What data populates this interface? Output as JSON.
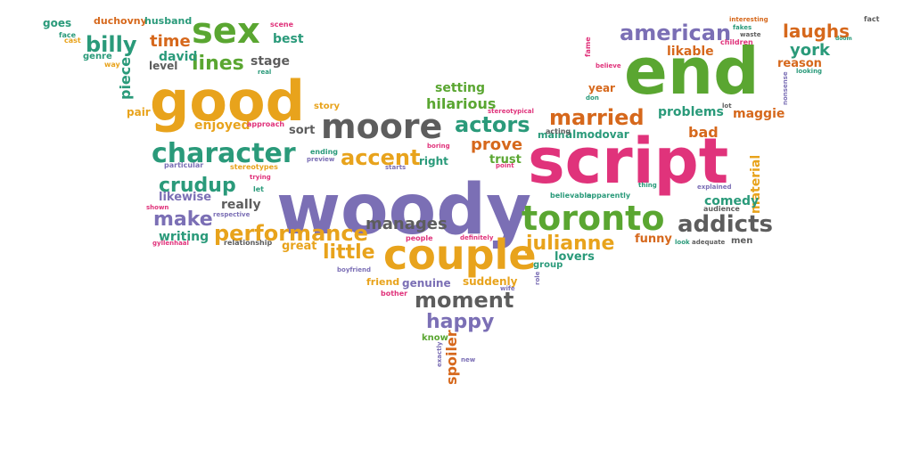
{
  "colors": {
    "purple": "#7b6fb5",
    "orange": "#e8a31c",
    "green": "#5aa631",
    "pink": "#e0337b",
    "teal": "#2a9a7a",
    "burnt": "#d6681c",
    "gray": "#5d5d5d",
    "background": "#ffffff"
  },
  "words": [
    {
      "text": "woody",
      "color": "purple"
    },
    {
      "text": "script",
      "color": "pink"
    },
    {
      "text": "end",
      "color": "green"
    },
    {
      "text": "good",
      "color": "orange"
    },
    {
      "text": "couple",
      "color": "orange"
    },
    {
      "text": "moore",
      "color": "gray"
    },
    {
      "text": "toronto",
      "color": "green"
    },
    {
      "text": "sex",
      "color": "green"
    },
    {
      "text": "character",
      "color": "teal"
    },
    {
      "text": "performance",
      "color": "orange"
    },
    {
      "text": "addicts",
      "color": "gray"
    },
    {
      "text": "american",
      "color": "purple"
    },
    {
      "text": "married",
      "color": "burnt"
    },
    {
      "text": "actors",
      "color": "teal"
    },
    {
      "text": "billy",
      "color": "teal"
    },
    {
      "text": "julianne",
      "color": "orange"
    },
    {
      "text": "accent",
      "color": "orange"
    },
    {
      "text": "moment",
      "color": "gray"
    },
    {
      "text": "happy",
      "color": "purple"
    },
    {
      "text": "laughs",
      "color": "burnt"
    },
    {
      "text": "crudup",
      "color": "teal"
    },
    {
      "text": "little",
      "color": "orange"
    },
    {
      "text": "lines",
      "color": "green"
    },
    {
      "text": "time",
      "color": "burnt"
    },
    {
      "text": "make",
      "color": "purple"
    },
    {
      "text": "york",
      "color": "teal"
    },
    {
      "text": "manages",
      "color": "gray"
    },
    {
      "text": "prove",
      "color": "burnt"
    },
    {
      "text": "hilarious",
      "color": "green"
    },
    {
      "text": "bad",
      "color": "burnt"
    },
    {
      "text": "likable",
      "color": "burnt"
    },
    {
      "text": "problems",
      "color": "teal"
    },
    {
      "text": "maggie",
      "color": "burnt"
    },
    {
      "text": "reason",
      "color": "burnt"
    },
    {
      "text": "material",
      "color": "orange"
    },
    {
      "text": "comedy",
      "color": "teal"
    },
    {
      "text": "funny",
      "color": "burnt"
    },
    {
      "text": "lovers",
      "color": "teal"
    },
    {
      "text": "great",
      "color": "orange"
    },
    {
      "text": "writing",
      "color": "teal"
    },
    {
      "text": "really",
      "color": "gray"
    },
    {
      "text": "likewise",
      "color": "purple"
    },
    {
      "text": "enjoyed",
      "color": "orange"
    },
    {
      "text": "piece",
      "color": "teal"
    },
    {
      "text": "david",
      "color": "teal"
    },
    {
      "text": "stage",
      "color": "gray"
    },
    {
      "text": "best",
      "color": "teal"
    },
    {
      "text": "year",
      "color": "burnt"
    },
    {
      "text": "setting",
      "color": "green"
    },
    {
      "text": "trust",
      "color": "green"
    },
    {
      "text": "almodovar",
      "color": "teal"
    },
    {
      "text": "genuine",
      "color": "purple"
    },
    {
      "text": "suddenly",
      "color": "orange"
    },
    {
      "text": "friend",
      "color": "orange"
    },
    {
      "text": "spoiler",
      "color": "burnt"
    },
    {
      "text": "sort",
      "color": "gray"
    },
    {
      "text": "right",
      "color": "teal"
    },
    {
      "text": "goes",
      "color": "teal"
    },
    {
      "text": "duchovny",
      "color": "burnt"
    },
    {
      "text": "husband",
      "color": "teal"
    },
    {
      "text": "level",
      "color": "gray"
    },
    {
      "text": "genre",
      "color": "teal"
    },
    {
      "text": "pair",
      "color": "orange"
    },
    {
      "text": "story",
      "color": "orange"
    },
    {
      "text": "main",
      "color": "teal"
    },
    {
      "text": "group",
      "color": "teal"
    },
    {
      "text": "men",
      "color": "gray"
    },
    {
      "text": "know",
      "color": "green"
    },
    {
      "text": "scene",
      "color": "pink"
    },
    {
      "text": "face",
      "color": "teal"
    },
    {
      "text": "cast",
      "color": "orange"
    },
    {
      "text": "way",
      "color": "orange"
    },
    {
      "text": "real",
      "color": "teal"
    },
    {
      "text": "approach",
      "color": "pink"
    },
    {
      "text": "ending",
      "color": "teal"
    },
    {
      "text": "preview",
      "color": "purple"
    },
    {
      "text": "particular",
      "color": "purple"
    },
    {
      "text": "stereotypes",
      "color": "orange"
    },
    {
      "text": "trying",
      "color": "pink"
    },
    {
      "text": "let",
      "color": "teal"
    },
    {
      "text": "shown",
      "color": "pink"
    },
    {
      "text": "respective",
      "color": "purple"
    },
    {
      "text": "gyllenhaal",
      "color": "pink"
    },
    {
      "text": "relationship",
      "color": "gray"
    },
    {
      "text": "boring",
      "color": "pink"
    },
    {
      "text": "starts",
      "color": "purple"
    },
    {
      "text": "people",
      "color": "pink"
    },
    {
      "text": "definitely",
      "color": "pink"
    },
    {
      "text": "boyfriend",
      "color": "purple"
    },
    {
      "text": "bother",
      "color": "pink"
    },
    {
      "text": "exactly",
      "color": "purple"
    },
    {
      "text": "new",
      "color": "purple"
    },
    {
      "text": "wife",
      "color": "purple"
    },
    {
      "text": "role",
      "color": "purple"
    },
    {
      "text": "point",
      "color": "pink"
    },
    {
      "text": "stereotypical",
      "color": "pink"
    },
    {
      "text": "acting",
      "color": "gray"
    },
    {
      "text": "believable",
      "color": "teal"
    },
    {
      "text": "apparently",
      "color": "teal"
    },
    {
      "text": "thing",
      "color": "teal"
    },
    {
      "text": "explained",
      "color": "purple"
    },
    {
      "text": "audience",
      "color": "gray"
    },
    {
      "text": "look",
      "color": "teal"
    },
    {
      "text": "adequate",
      "color": "gray"
    },
    {
      "text": "don",
      "color": "teal"
    },
    {
      "text": "believe",
      "color": "pink"
    },
    {
      "text": "lot",
      "color": "gray"
    },
    {
      "text": "fame",
      "color": "pink"
    },
    {
      "text": "interesting",
      "color": "burnt"
    },
    {
      "text": "fakes",
      "color": "teal"
    },
    {
      "text": "waste",
      "color": "gray"
    },
    {
      "text": "children",
      "color": "pink"
    },
    {
      "text": "nonsense",
      "color": "purple"
    },
    {
      "text": "looking",
      "color": "teal"
    },
    {
      "text": "fact",
      "color": "gray"
    },
    {
      "text": "doom",
      "color": "teal"
    }
  ]
}
